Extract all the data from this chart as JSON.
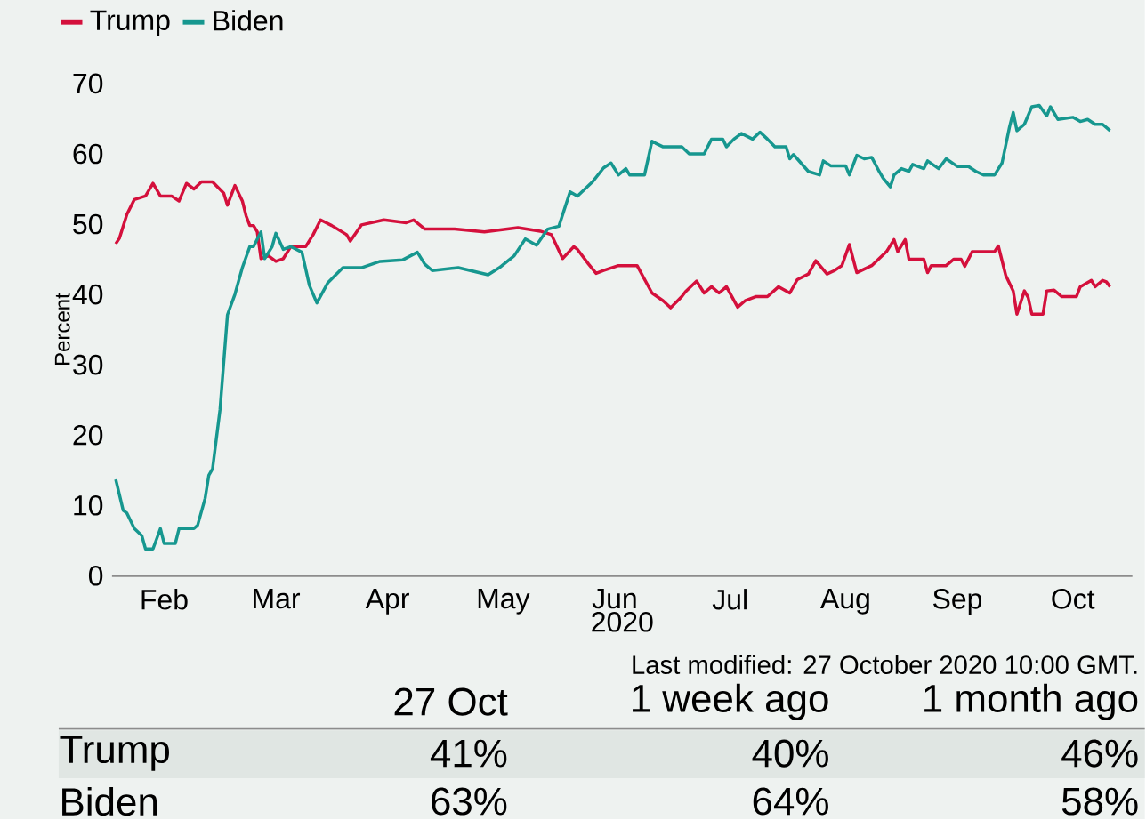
{
  "chart_data": {
    "type": "line",
    "ylabel": "Percent",
    "xlabel": "2020",
    "legend": "top left",
    "line_style": "solid",
    "grid": false,
    "xlim": [
      "2020-02-01",
      "2020-11-01"
    ],
    "ylim": [
      0,
      70
    ],
    "yticks": [
      0,
      10,
      20,
      30,
      40,
      50,
      60,
      70
    ],
    "xticks": [
      {
        "value": "2020-02-15",
        "label": "Feb"
      },
      {
        "value": "2020-03-16",
        "label": "Mar"
      },
      {
        "value": "2020-04-15",
        "label": "Apr"
      },
      {
        "value": "2020-05-16",
        "label": "May"
      },
      {
        "value": "2020-06-15",
        "label": "Jun"
      },
      {
        "value": "2020-07-16",
        "label": "Jul"
      },
      {
        "value": "2020-08-16",
        "label": "Aug"
      },
      {
        "value": "2020-09-15",
        "label": "Sep"
      },
      {
        "value": "2020-10-16",
        "label": "Oct"
      }
    ],
    "annotations": [
      "Last modified: 27 October 2020 10:00 GMT.",
      "27 Oct",
      "1 week ago",
      "1 month ago",
      "Trump",
      "41%",
      "40%",
      "46%",
      "Biden",
      "63%",
      "64%",
      "58%"
    ],
    "series": [
      {
        "name": "Trump",
        "color": "#d4103c",
        "x": [
          "2020-02-02",
          "2020-02-03",
          "2020-02-05",
          "2020-02-07",
          "2020-02-10",
          "2020-02-12",
          "2020-02-14",
          "2020-02-17",
          "2020-02-19",
          "2020-02-21",
          "2020-02-23",
          "2020-02-25",
          "2020-02-28",
          "2020-03-02",
          "2020-03-03",
          "2020-03-05",
          "2020-03-07",
          "2020-03-08",
          "2020-03-09",
          "2020-03-10",
          "2020-03-11",
          "2020-03-12",
          "2020-03-14",
          "2020-03-16",
          "2020-03-18",
          "2020-03-20",
          "2020-03-24",
          "2020-03-26",
          "2020-03-28",
          "2020-03-31",
          "2020-04-04",
          "2020-04-05",
          "2020-04-08",
          "2020-04-14",
          "2020-04-20",
          "2020-04-22",
          "2020-04-25",
          "2020-05-03",
          "2020-05-11",
          "2020-05-20",
          "2020-05-26",
          "2020-05-29",
          "2020-06-01",
          "2020-06-04",
          "2020-06-05",
          "2020-06-08",
          "2020-06-10",
          "2020-06-12",
          "2020-06-16",
          "2020-06-21",
          "2020-06-25",
          "2020-06-28",
          "2020-06-30",
          "2020-07-03",
          "2020-07-04",
          "2020-07-07",
          "2020-07-09",
          "2020-07-11",
          "2020-07-13",
          "2020-07-15",
          "2020-07-18",
          "2020-07-20",
          "2020-07-23",
          "2020-07-26",
          "2020-07-29",
          "2020-08-01",
          "2020-08-03",
          "2020-08-06",
          "2020-08-08",
          "2020-08-11",
          "2020-08-13",
          "2020-08-15",
          "2020-08-17",
          "2020-08-19",
          "2020-08-23",
          "2020-08-27",
          "2020-08-29",
          "2020-08-30",
          "2020-09-01",
          "2020-09-02",
          "2020-09-06",
          "2020-09-07",
          "2020-09-08",
          "2020-09-12",
          "2020-09-14",
          "2020-09-16",
          "2020-09-17",
          "2020-09-19",
          "2020-09-25",
          "2020-09-26",
          "2020-09-28",
          "2020-09-30",
          "2020-10-01",
          "2020-10-03",
          "2020-10-04",
          "2020-10-05",
          "2020-10-08",
          "2020-10-09",
          "2020-10-11",
          "2020-10-13",
          "2020-10-17",
          "2020-10-18",
          "2020-10-21",
          "2020-10-22",
          "2020-10-24",
          "2020-10-25",
          "2020-10-26"
        ],
        "values": [
          47.2,
          48,
          51.4,
          53.5,
          54,
          55.8,
          54,
          54,
          53.3,
          55.8,
          55,
          56,
          56,
          54.4,
          52.7,
          55.5,
          53.3,
          51.2,
          49.8,
          49.8,
          48.9,
          45.1,
          45.5,
          44.7,
          45.1,
          46.8,
          46.8,
          48.5,
          50.6,
          49.8,
          48.5,
          47.6,
          49.9,
          50.6,
          50.2,
          50.6,
          49.3,
          49.3,
          48.9,
          49.5,
          49,
          48.5,
          45.1,
          46.8,
          46.4,
          44.3,
          43,
          43.4,
          44.1,
          44.1,
          40.2,
          39.1,
          38.1,
          39.7,
          40.4,
          41.9,
          40.2,
          41.1,
          40.2,
          41.1,
          38.2,
          39.1,
          39.7,
          39.7,
          41.1,
          40.2,
          42.1,
          42.9,
          44.8,
          42.9,
          43.4,
          44.1,
          47.1,
          43.1,
          44.1,
          46.1,
          47.8,
          46.1,
          47.8,
          45,
          45,
          43.1,
          44.1,
          44.1,
          45,
          45,
          44,
          46.1,
          46.1,
          46.9,
          42.7,
          40.5,
          37.2,
          40.5,
          39.6,
          37.2,
          37.2,
          40.5,
          40.6,
          39.7,
          39.7,
          41.1,
          42,
          41.1,
          42,
          41.8,
          41.1
        ]
      },
      {
        "name": "Biden",
        "color": "#16978f",
        "x": [
          "2020-02-02",
          "2020-02-04",
          "2020-02-05",
          "2020-02-07",
          "2020-02-09",
          "2020-02-10",
          "2020-02-12",
          "2020-02-14",
          "2020-02-15",
          "2020-02-18",
          "2020-02-19",
          "2020-02-23",
          "2020-02-24",
          "2020-02-26",
          "2020-02-27",
          "2020-02-28",
          "2020-03-01",
          "2020-03-03",
          "2020-03-05",
          "2020-03-07",
          "2020-03-09",
          "2020-03-10",
          "2020-03-12",
          "2020-03-13",
          "2020-03-15",
          "2020-03-16",
          "2020-03-18",
          "2020-03-20",
          "2020-03-23",
          "2020-03-25",
          "2020-03-27",
          "2020-03-30",
          "2020-04-03",
          "2020-04-08",
          "2020-04-13",
          "2020-04-19",
          "2020-04-23",
          "2020-04-25",
          "2020-04-27",
          "2020-05-04",
          "2020-05-12",
          "2020-05-15",
          "2020-05-19",
          "2020-05-22",
          "2020-05-25",
          "2020-05-28",
          "2020-05-31",
          "2020-06-03",
          "2020-06-05",
          "2020-06-09",
          "2020-06-12",
          "2020-06-14",
          "2020-06-16",
          "2020-06-18",
          "2020-06-19",
          "2020-06-23",
          "2020-06-25",
          "2020-06-26",
          "2020-06-28",
          "2020-07-03",
          "2020-07-05",
          "2020-07-09",
          "2020-07-11",
          "2020-07-14",
          "2020-07-15",
          "2020-07-17",
          "2020-07-19",
          "2020-07-22",
          "2020-07-24",
          "2020-07-26",
          "2020-07-28",
          "2020-07-31",
          "2020-08-01",
          "2020-08-02",
          "2020-08-06",
          "2020-08-09",
          "2020-08-10",
          "2020-08-12",
          "2020-08-16",
          "2020-08-17",
          "2020-08-19",
          "2020-08-21",
          "2020-08-23",
          "2020-08-25",
          "2020-08-26",
          "2020-08-28",
          "2020-08-29",
          "2020-08-31",
          "2020-09-02",
          "2020-09-03",
          "2020-09-06",
          "2020-09-07",
          "2020-09-10",
          "2020-09-12",
          "2020-09-15",
          "2020-09-18",
          "2020-09-20",
          "2020-09-22",
          "2020-09-25",
          "2020-09-27",
          "2020-09-29",
          "2020-09-30",
          "2020-10-01",
          "2020-10-03",
          "2020-10-05",
          "2020-10-07",
          "2020-10-09",
          "2020-10-10",
          "2020-10-12",
          "2020-10-16",
          "2020-10-18",
          "2020-10-20",
          "2020-10-22",
          "2020-10-24",
          "2020-10-26"
        ],
        "values": [
          13.7,
          9.3,
          8.9,
          6.7,
          5.7,
          3.8,
          3.8,
          6.7,
          4.6,
          4.6,
          6.7,
          6.7,
          7.2,
          11,
          14.3,
          15.2,
          23.6,
          37.1,
          40,
          43.8,
          46.8,
          46.8,
          48.9,
          45.1,
          46.8,
          48.7,
          46.4,
          46.8,
          46,
          41.3,
          38.8,
          41.7,
          43.8,
          43.8,
          44.7,
          44.9,
          46,
          44.3,
          43.4,
          43.8,
          42.8,
          43.8,
          45.5,
          47.9,
          47,
          49.3,
          49.7,
          54.6,
          54,
          56,
          58,
          58.7,
          57,
          57.9,
          57,
          57,
          61.8,
          61.5,
          61,
          61,
          60,
          60,
          62.1,
          62.1,
          61,
          62.1,
          62.9,
          62.1,
          63.1,
          62.1,
          61,
          61,
          59.3,
          59.9,
          57.5,
          57,
          59,
          58.3,
          58.3,
          57,
          59.8,
          59.3,
          59.5,
          57.5,
          56.6,
          55.3,
          57,
          57.9,
          57.5,
          58.5,
          57.9,
          59,
          57.9,
          59.3,
          58.2,
          58.2,
          57.5,
          57,
          57,
          58.7,
          63.8,
          65.9,
          63.3,
          64.2,
          66.7,
          66.9,
          65.4,
          66.7,
          64.9,
          65.2,
          64.6,
          64.9,
          64.2,
          64.2,
          63.3
        ]
      }
    ]
  }
}
